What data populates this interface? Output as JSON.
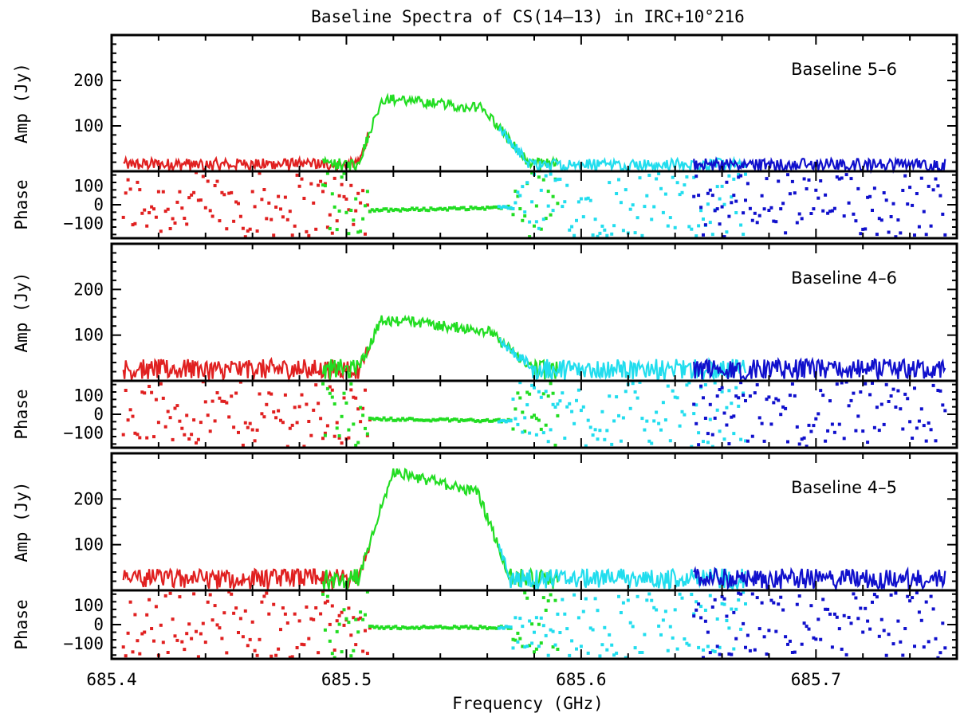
{
  "chart_data": {
    "type": "line",
    "title": "Baseline Spectra of CS(14–13) in IRC+10°216",
    "xlabel": "Frequency (GHz)",
    "xlim": [
      685.4,
      685.76
    ],
    "x_ticks": [
      "685.4",
      "685.5",
      "685.6",
      "685.7"
    ],
    "x_tick_values": [
      685.4,
      685.5,
      685.6,
      685.7
    ],
    "amp_ylabel": "Amp (Jy)",
    "amp_ylim": [
      0,
      300
    ],
    "amp_ticks": [
      "100",
      "200"
    ],
    "amp_tick_values": [
      100,
      200
    ],
    "phase_ylabel": "Phase",
    "phase_ylim": [
      -180,
      180
    ],
    "phase_ticks": [
      "100",
      "0",
      "−100"
    ],
    "phase_tick_values": [
      100,
      0,
      -100
    ],
    "colors": {
      "band1": "#e02020",
      "band2": "#22dd22",
      "band3": "#22ddee",
      "band4": "#1010cc",
      "axes": "#000000"
    },
    "bands": [
      {
        "color_key": "band1",
        "x_range": [
          685.405,
          685.51
        ]
      },
      {
        "color_key": "band2",
        "x_range": [
          685.49,
          685.59
        ]
      },
      {
        "color_key": "band3",
        "x_range": [
          685.565,
          685.67
        ]
      },
      {
        "color_key": "band4",
        "x_range": [
          685.648,
          685.755
        ]
      }
    ],
    "panels": [
      {
        "label": "Baseline 5–6",
        "amp_noise": 15,
        "line_profile": {
          "x_start": 685.505,
          "x_peak": 685.515,
          "x_fall_start": 685.558,
          "x_end": 685.578,
          "peak": 160,
          "plateau": 140,
          "noise_level": 15
        },
        "phase_profile": {
          "x_start": 685.51,
          "x_end": 685.57,
          "start_value": -30,
          "end_value": -15
        }
      },
      {
        "label": "Baseline 4–6",
        "amp_noise": 25,
        "line_profile": {
          "x_start": 685.505,
          "x_peak": 685.515,
          "x_fall_start": 685.56,
          "x_end": 685.58,
          "peak": 135,
          "plateau": 110,
          "noise_level": 25
        },
        "phase_profile": {
          "x_start": 685.51,
          "x_end": 685.57,
          "start_value": -25,
          "end_value": -35
        }
      },
      {
        "label": "Baseline 4–5",
        "amp_noise": 25,
        "line_profile": {
          "x_start": 685.505,
          "x_peak": 685.52,
          "x_fall_start": 685.556,
          "x_end": 685.57,
          "peak": 260,
          "plateau": 215,
          "noise_level": 25
        },
        "phase_profile": {
          "x_start": 685.51,
          "x_end": 685.57,
          "start_value": -15,
          "end_value": -15
        }
      }
    ]
  }
}
